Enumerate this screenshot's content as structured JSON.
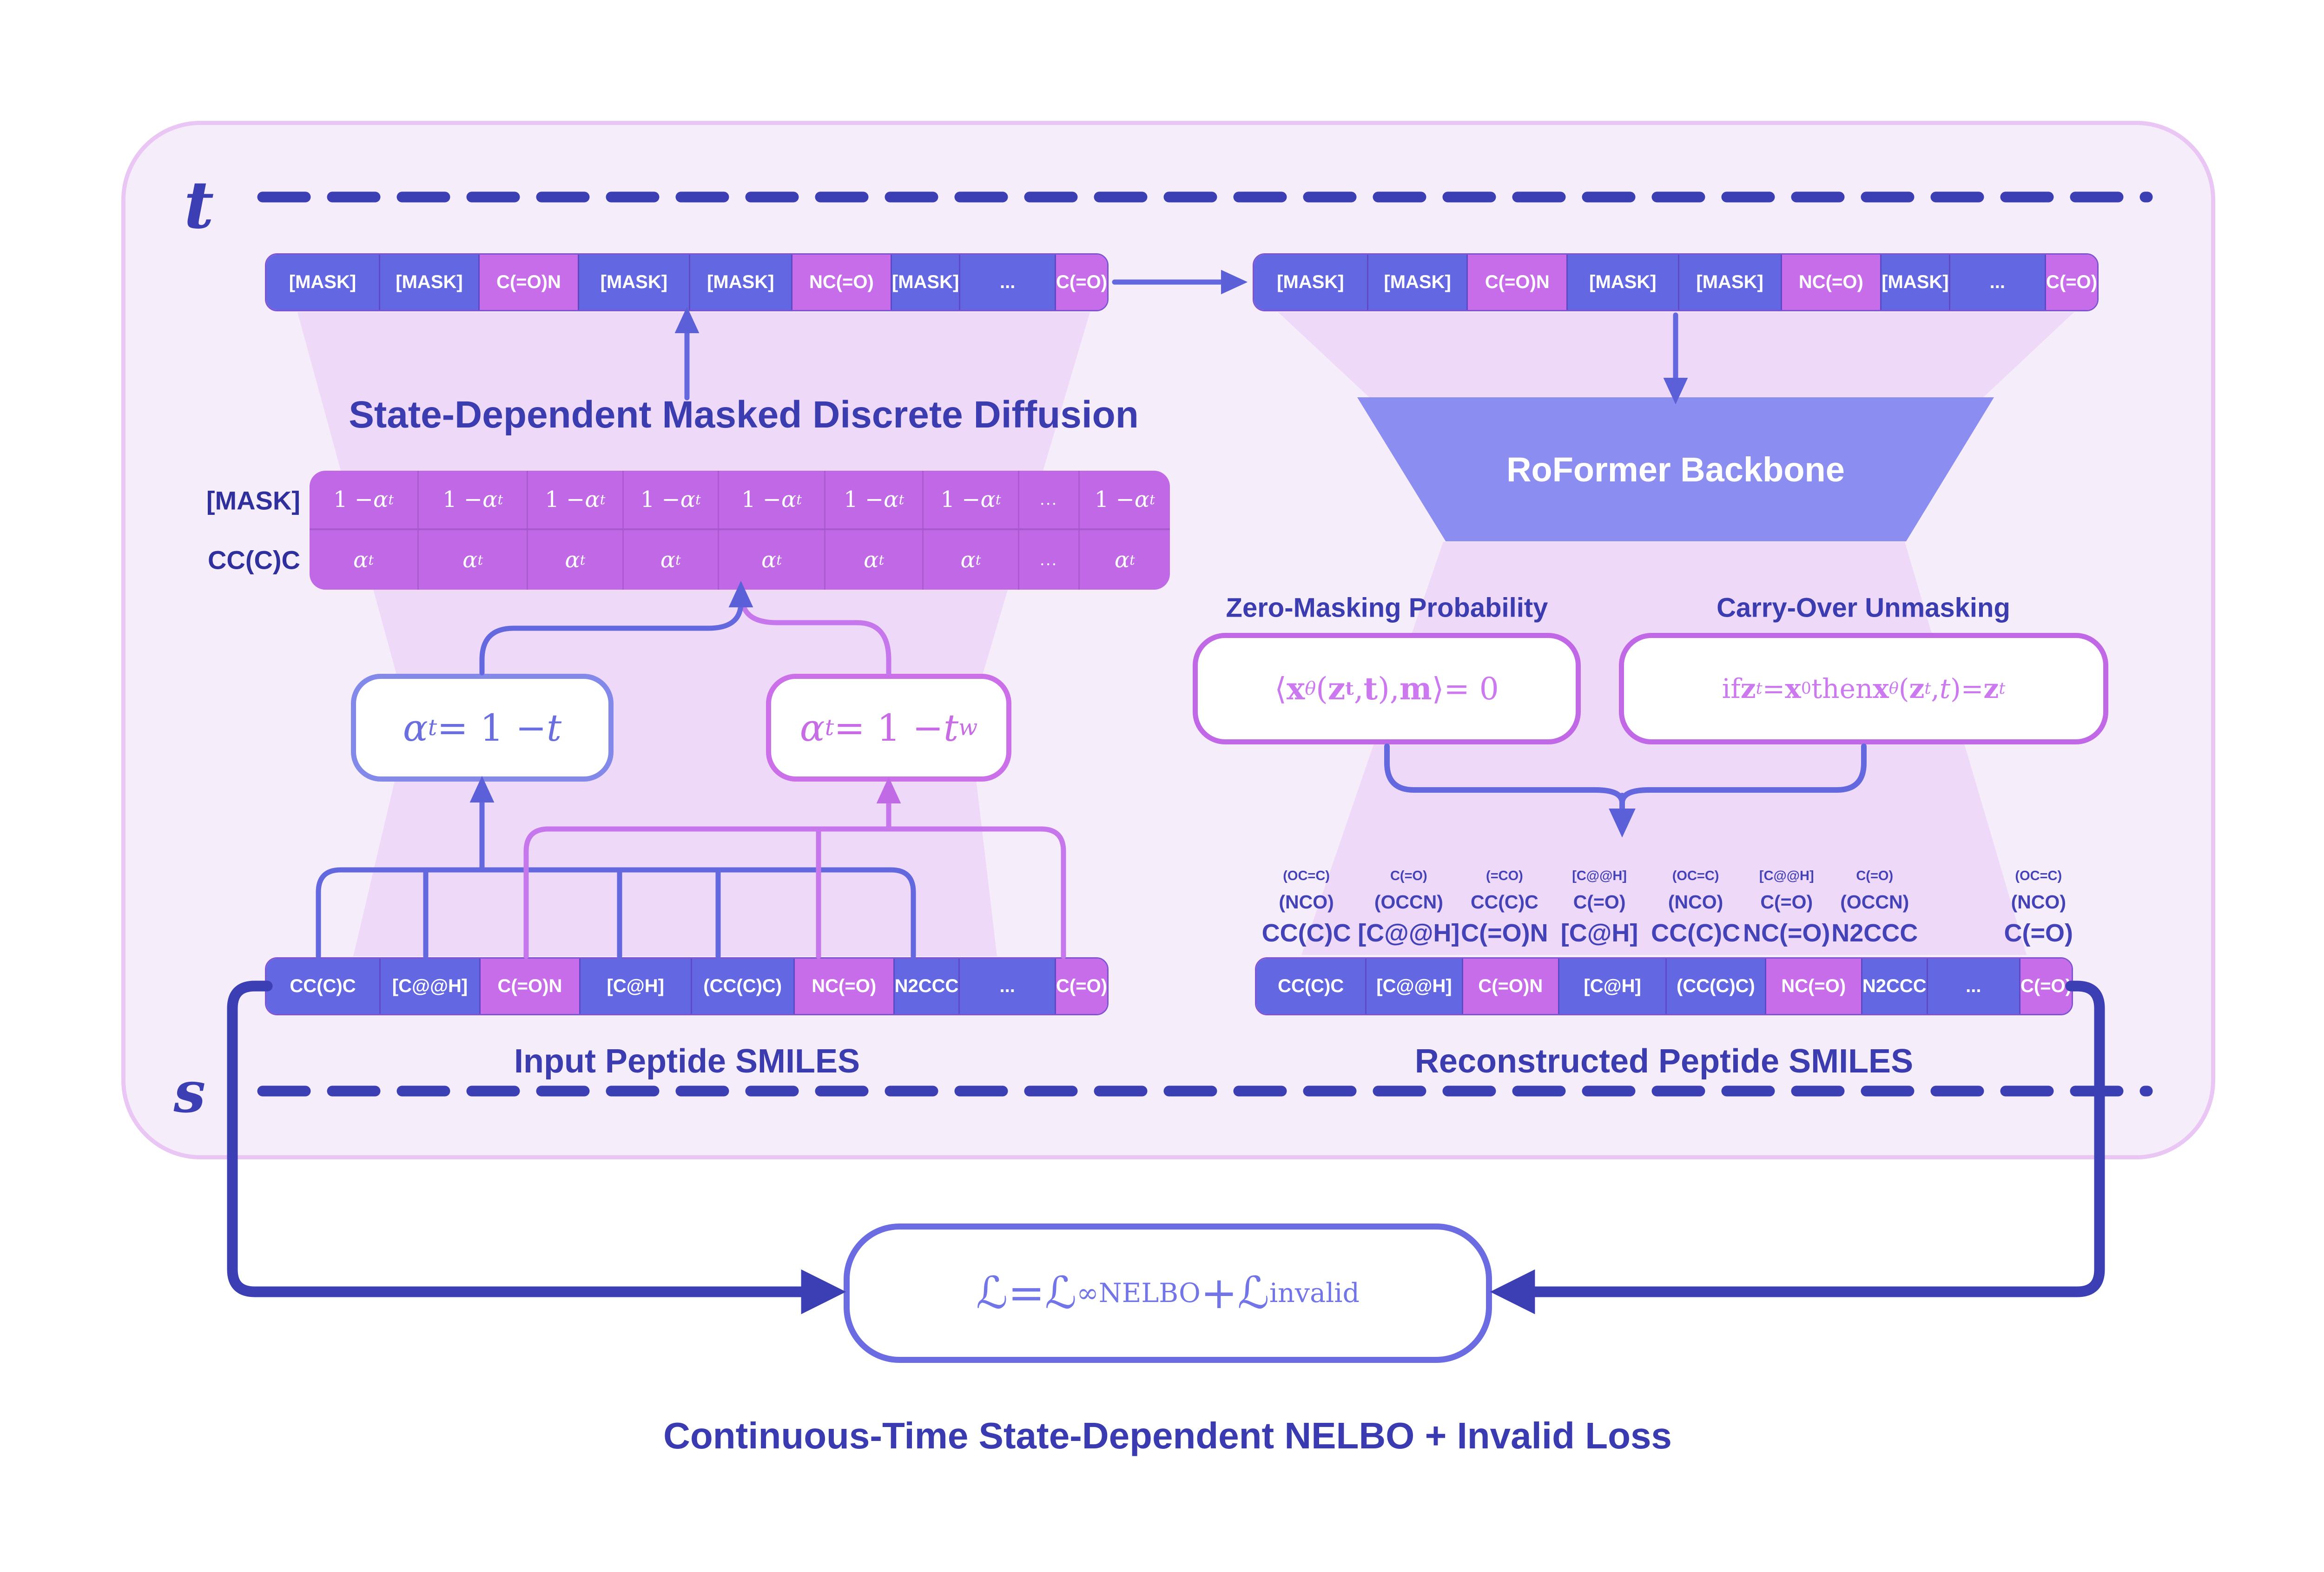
{
  "colors": {
    "token_blue": "#6467e2",
    "token_purple": "#c76de9",
    "table_purple": "#c168e6",
    "heading_indigo": "#3b3caf",
    "dark_line": "#3c3eb3",
    "periwinkle_line": "#6468df",
    "orchid_line": "#c777ec",
    "roformer_fill": "#8c8df1",
    "loss_accent": "#6b6ce2",
    "panel_fill": "#f6edfb",
    "panel_border": "#e9c6f4",
    "funnel_fill": "#efd9f8",
    "stack_text": "#4442b8"
  },
  "timeline": {
    "t_label": "t",
    "s_label": "s"
  },
  "noised_row": [
    {
      "text": "[MASK]",
      "variant": "blue"
    },
    {
      "text": "[MASK]",
      "variant": "blue"
    },
    {
      "text": "C(=O)N",
      "variant": "purple"
    },
    {
      "text": "[MASK]",
      "variant": "blue"
    },
    {
      "text": "[MASK]",
      "variant": "blue"
    },
    {
      "text": "NC(=O)",
      "variant": "purple"
    },
    {
      "text": "[MASK]",
      "variant": "blue"
    },
    {
      "text": "...",
      "variant": "blue"
    },
    {
      "text": "C(=O)",
      "variant": "purple"
    }
  ],
  "diffusion_heading": "State-Dependent Masked Discrete Diffusion",
  "alpha_table": {
    "row_labels": [
      "[MASK]",
      "CC(C)C"
    ],
    "one_minus_alpha": [
      {
        "t": "1 − "
      },
      {
        "t": "α",
        "i": 1
      },
      {
        "t": "t",
        "i": 1,
        "sub": 1
      }
    ],
    "alpha": [
      {
        "t": "α",
        "i": 1
      },
      {
        "t": "t",
        "i": 1,
        "sub": 1
      }
    ],
    "dots": "...",
    "layout": [
      "f",
      "f",
      "f",
      "f",
      "f",
      "f",
      "f",
      "d",
      "f"
    ]
  },
  "alpha_boxes": {
    "linear": [
      {
        "t": "α",
        "i": 1
      },
      {
        "t": "t",
        "i": 1,
        "sub": 1
      },
      {
        "t": " = 1 − "
      },
      {
        "t": "t",
        "i": 1
      }
    ],
    "weighted": [
      {
        "t": "α",
        "i": 1
      },
      {
        "t": "t",
        "i": 1,
        "sub": 1
      },
      {
        "t": " = 1 − "
      },
      {
        "t": "t",
        "i": 1
      },
      {
        "t": "w",
        "i": 1,
        "sup": 1
      }
    ]
  },
  "input_row": {
    "tokens": [
      {
        "text": "CC(C)C",
        "variant": "blue"
      },
      {
        "text": "[C@@H]",
        "variant": "blue"
      },
      {
        "text": "C(=O)N",
        "variant": "purple"
      },
      {
        "text": "[C@H]",
        "variant": "blue"
      },
      {
        "text": "(CC(C)C)",
        "variant": "blue"
      },
      {
        "text": "NC(=O)",
        "variant": "purple"
      },
      {
        "text": "N2CCC",
        "variant": "blue"
      },
      {
        "text": "...",
        "variant": "blue"
      },
      {
        "text": "C(=O)",
        "variant": "purple"
      }
    ],
    "label": "Input Peptide SMILES"
  },
  "roformer_label": "RoFormer Backbone",
  "zero_masking": {
    "heading": "Zero-Masking Probability",
    "formula": [
      {
        "t": "⟨"
      },
      {
        "t": "x",
        "b": 1
      },
      {
        "t": "θ",
        "i": 1,
        "sub": 1
      },
      {
        "t": "("
      },
      {
        "t": "z",
        "b": 1
      },
      {
        "t": "t",
        "b": 1,
        "sub": 1
      },
      {
        "t": ", "
      },
      {
        "t": "t",
        "b": 1
      },
      {
        "t": ")"
      },
      {
        "t": ", "
      },
      {
        "t": "m",
        "b": 1
      },
      {
        "t": "⟩"
      },
      {
        "t": " = 0"
      }
    ]
  },
  "carry_over": {
    "heading": "Carry-Over Unmasking",
    "formula": [
      {
        "t": "if "
      },
      {
        "t": "z",
        "b": 1
      },
      {
        "t": "t",
        "i": 1,
        "sub": 1
      },
      {
        "t": " = "
      },
      {
        "t": "x",
        "b": 1
      },
      {
        "t": "0",
        "sub": 1
      },
      {
        "t": " then "
      },
      {
        "t": "x",
        "b": 1
      },
      {
        "t": "θ",
        "i": 1,
        "sub": 1
      },
      {
        "t": "("
      },
      {
        "t": "z",
        "b": 1
      },
      {
        "t": "t",
        "i": 1,
        "sub": 1
      },
      {
        "t": ", "
      },
      {
        "t": "t",
        "i": 1
      },
      {
        "t": ")"
      },
      {
        "t": " = "
      },
      {
        "t": "z",
        "b": 1
      },
      {
        "t": "t",
        "i": 1,
        "sub": 1
      }
    ]
  },
  "reconstructed": {
    "stacks": [
      {
        "top": "(OC=C)",
        "mid": "(NCO)",
        "main": "CC(C)C"
      },
      {
        "top": "C(=O)",
        "mid": "(OCCN)",
        "main": "[C@@H]"
      },
      {
        "top": "(=CO)",
        "mid": "CC(C)C",
        "main": "C(=O)N"
      },
      {
        "top": "[C@@H]",
        "mid": "C(=O)",
        "main": "[C@H]"
      },
      {
        "top": "(OC=C)",
        "mid": "(NCO)",
        "main": "CC(C)C"
      },
      {
        "top": "[C@@H]",
        "mid": "C(=O)",
        "main": "NC(=O)"
      },
      {
        "top": "C(=O)",
        "mid": "(OCCN)",
        "main": "N2CCC"
      },
      {
        "top": "",
        "mid": "",
        "main": ""
      },
      {
        "top": "(OC=C)",
        "mid": "(NCO)",
        "main": "C(=O)"
      }
    ],
    "tokens": [
      {
        "text": "CC(C)C",
        "variant": "blue"
      },
      {
        "text": "[C@@H]",
        "variant": "blue"
      },
      {
        "text": "C(=O)N",
        "variant": "purple"
      },
      {
        "text": "[C@H]",
        "variant": "blue"
      },
      {
        "text": "(CC(C)C)",
        "variant": "blue"
      },
      {
        "text": "NC(=O)",
        "variant": "purple"
      },
      {
        "text": "N2CCC",
        "variant": "blue"
      },
      {
        "text": "...",
        "variant": "blue"
      },
      {
        "text": "C(=O)",
        "variant": "purple"
      }
    ],
    "label": "Reconstructed Peptide SMILES"
  },
  "loss": {
    "formula": [
      {
        "t": "ℒ"
      },
      {
        "t": " = "
      },
      {
        "t": "ℒ"
      },
      {
        "t": "∞",
        "sup": 1
      },
      {
        "t": "NELBO",
        "sub": 1
      },
      {
        "t": " + "
      },
      {
        "t": "ℒ"
      },
      {
        "t": "invalid",
        "sub": 1
      }
    ],
    "caption": "Continuous-Time State-Dependent NELBO + Invalid Loss"
  }
}
